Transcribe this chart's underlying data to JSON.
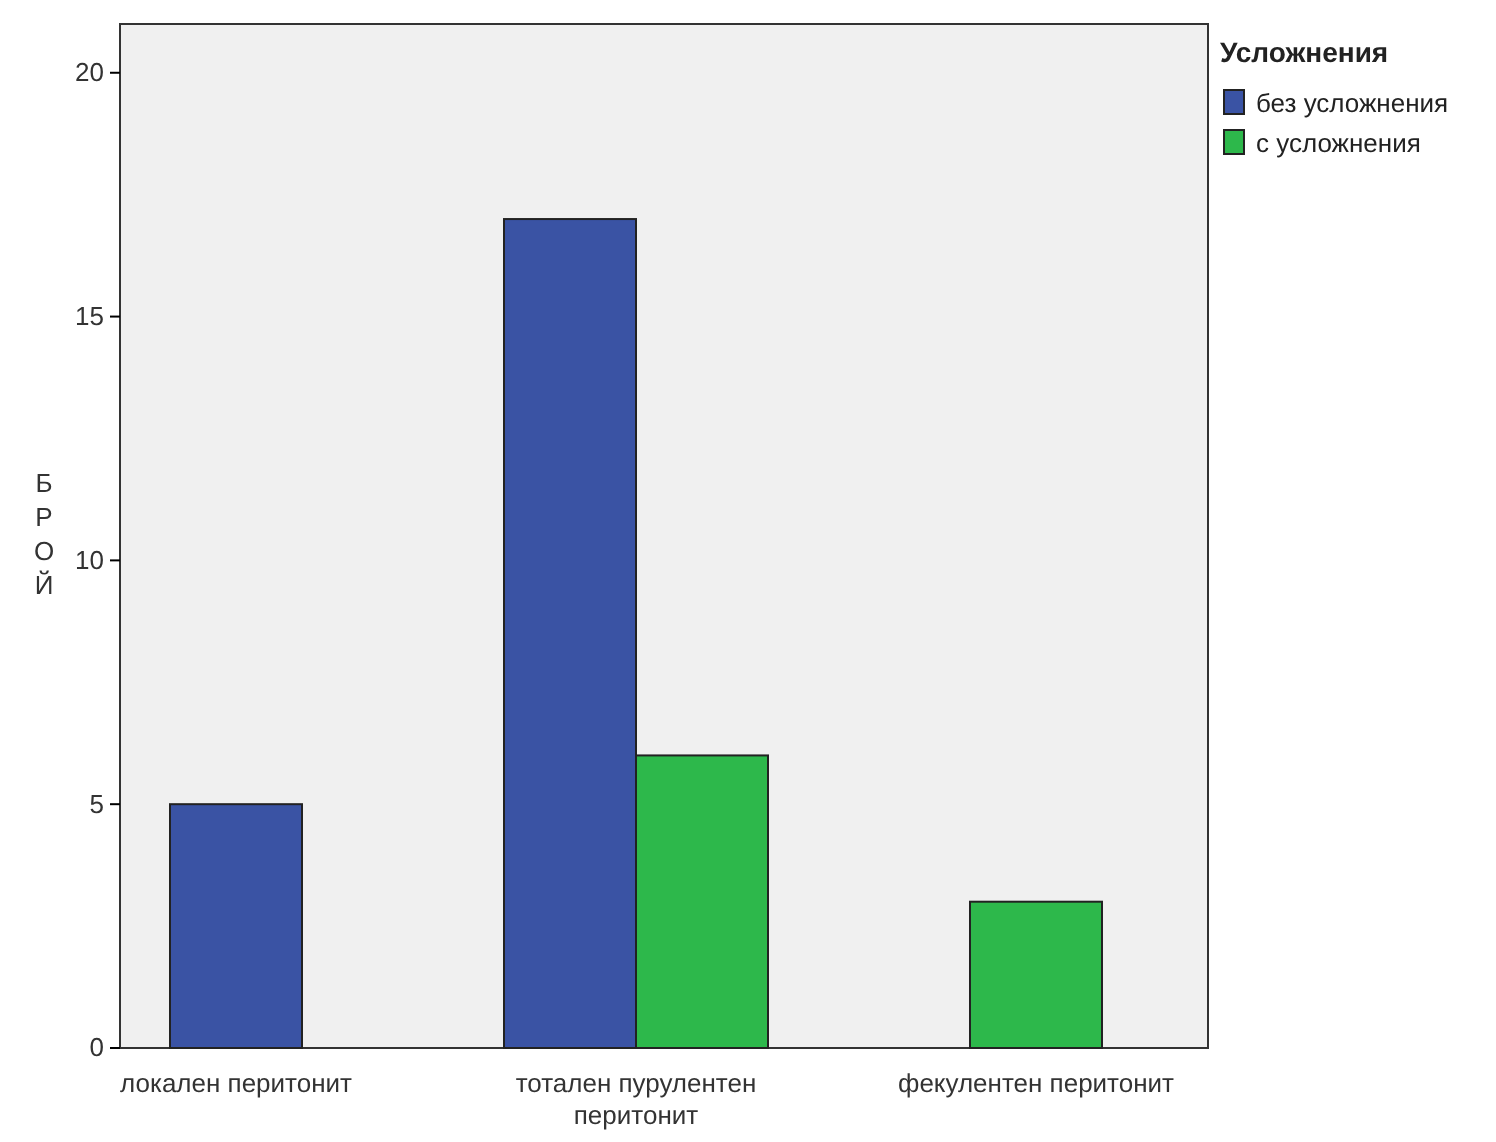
{
  "chart_data": {
    "type": "bar",
    "ylabel": "БРОЙ",
    "legend_title": "Усложнения",
    "legend": "top right",
    "categories": [
      "локален перитонит",
      "тотален пурулентен перитонит",
      "фекулентен перитонит"
    ],
    "series": [
      {
        "name": "без усложнения",
        "color": "#3a53a4",
        "values": [
          5,
          17,
          null
        ]
      },
      {
        "name": "с усложнения",
        "color": "#2db84b",
        "values": [
          null,
          6,
          3
        ]
      }
    ],
    "ylim": [
      0,
      21
    ],
    "yticks": [
      0,
      5,
      10,
      15,
      20
    ],
    "grid": false
  }
}
